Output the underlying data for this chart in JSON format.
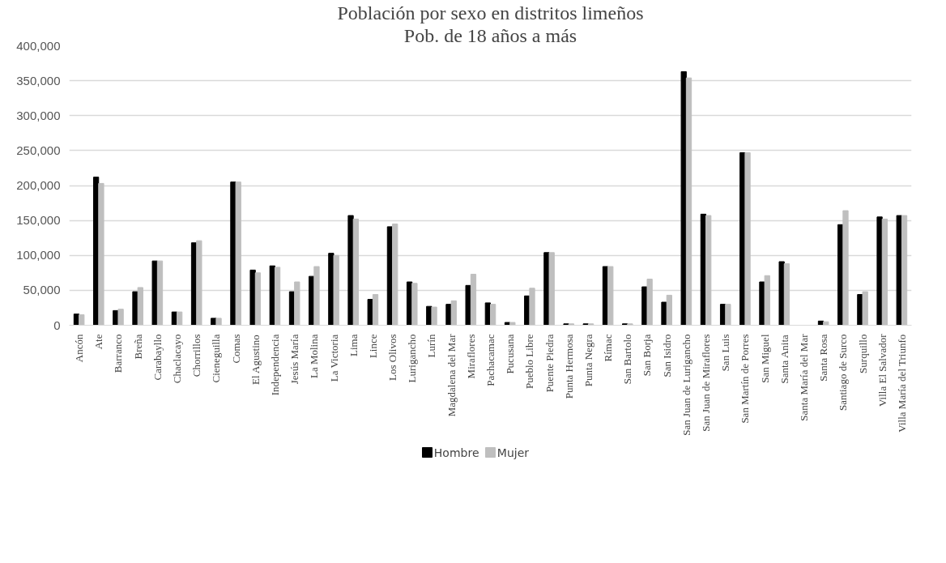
{
  "chart_data": {
    "type": "bar",
    "title": "Población por sexo en distritos limeños",
    "subtitle": "Pob. de 18 años a más",
    "categories": [
      "Ancón",
      "Ate",
      "Barranco",
      "Breña",
      "Carabayllo",
      "Chaclacayo",
      "Chorrillos",
      "Cieneguilla",
      "Comas",
      "El Agustino",
      "Independencia",
      "Jesús María",
      "La Molina",
      "La Victoria",
      "Lima",
      "Lince",
      "Los Olivos",
      "Lurigancho",
      "Lurín",
      "Magdalena del Mar",
      "Miraflores",
      "Pachacamac",
      "Pucusana",
      "Pueblo Libre",
      "Puente Piedra",
      "Punta Hermosa",
      "Punta Negra",
      "Rímac",
      "San Bartolo",
      "San Borja",
      "San Isidro",
      "San Juan de Lurigancho",
      "San Juan de Miraflores",
      "San Luis",
      "San Martín de Porres",
      "San Miguel",
      "Santa Anita",
      "Santa María del Mar",
      "Santa Rosa",
      "Santiago de Surco",
      "Surquillo",
      "Villa El Salvador",
      "Villa María del Triunfo"
    ],
    "series": [
      {
        "name": "Hombre",
        "color": "#000000",
        "values": [
          16000,
          212000,
          21000,
          48000,
          92000,
          19000,
          118000,
          10000,
          205000,
          79000,
          85000,
          48000,
          70000,
          103000,
          157000,
          37000,
          141000,
          62000,
          27000,
          30000,
          57000,
          32000,
          4000,
          42000,
          104000,
          2000,
          2000,
          84000,
          2000,
          55000,
          33000,
          363000,
          159000,
          30000,
          247000,
          62000,
          91000,
          0,
          6000,
          144000,
          44000,
          155000,
          157000
        ]
      },
      {
        "name": "Mujer",
        "color": "#bfbfbf",
        "values": [
          15000,
          203000,
          23000,
          54000,
          92000,
          19000,
          121000,
          10000,
          205000,
          75000,
          83000,
          62000,
          84000,
          100000,
          152000,
          44000,
          145000,
          60000,
          26000,
          35000,
          73000,
          30000,
          4000,
          53000,
          104000,
          2000,
          2000,
          84000,
          2000,
          66000,
          43000,
          354000,
          157000,
          30000,
          247000,
          71000,
          88000,
          0,
          5000,
          164000,
          48000,
          152000,
          157000
        ]
      }
    ],
    "ylim": [
      0,
      400000
    ],
    "yticks": [
      {
        "value": 0,
        "label": "0"
      },
      {
        "value": 50000,
        "label": "50,000"
      },
      {
        "value": 100000,
        "label": "100,000"
      },
      {
        "value": 150000,
        "label": "150,000"
      },
      {
        "value": 200000,
        "label": "200,000"
      },
      {
        "value": 250000,
        "label": "250,000"
      },
      {
        "value": 300000,
        "label": "300,000"
      },
      {
        "value": 350000,
        "label": "350,000"
      },
      {
        "value": 400000,
        "label": "400,000"
      }
    ],
    "grid": "y",
    "legend": "bottom"
  }
}
